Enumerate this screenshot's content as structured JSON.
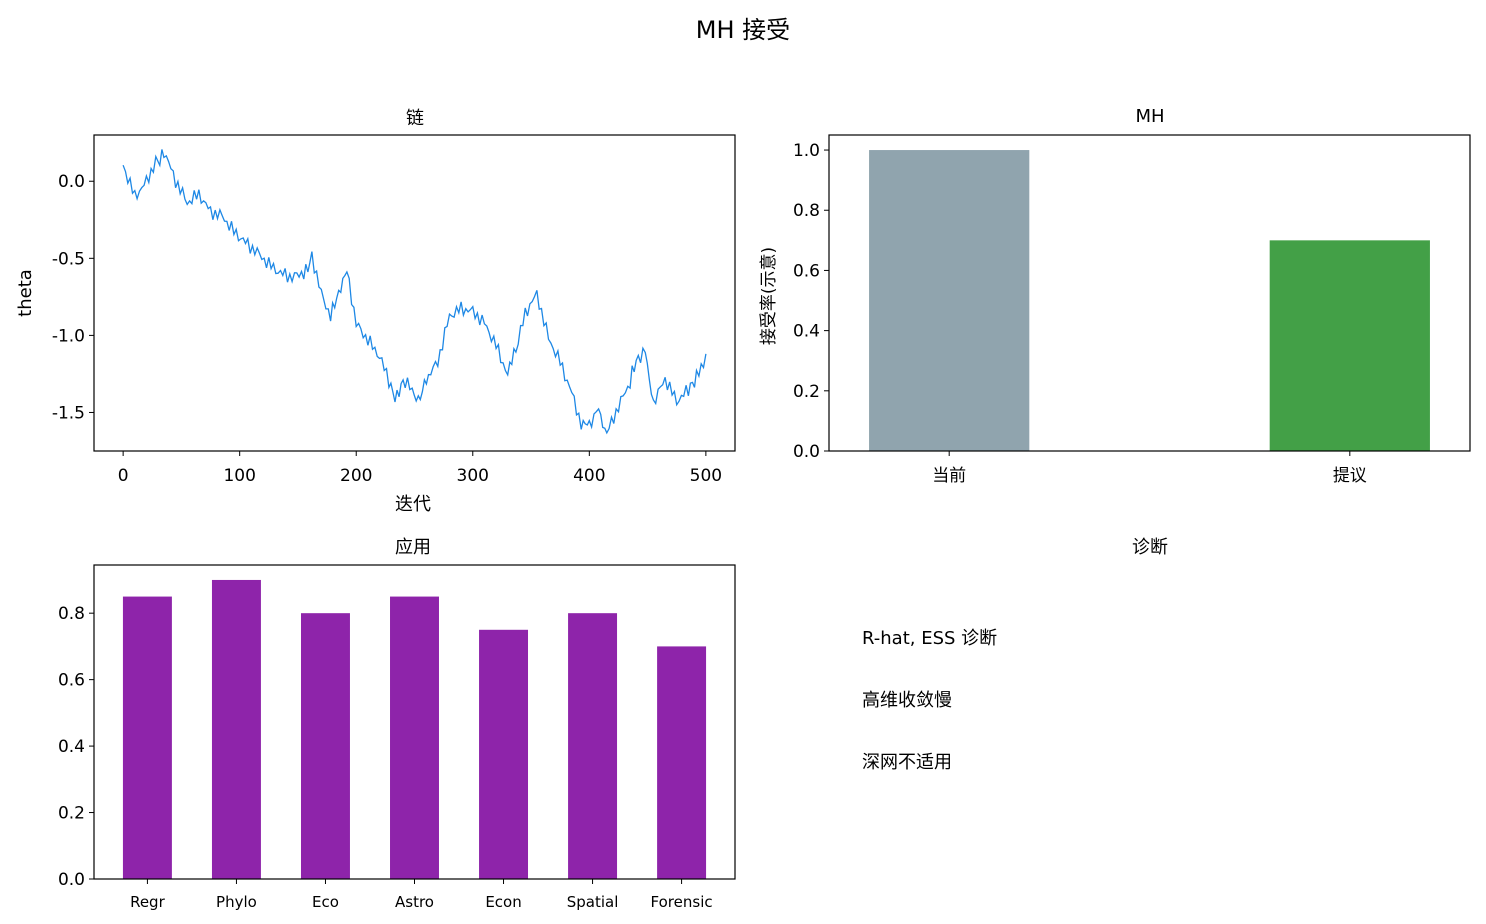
{
  "figure": {
    "suptitle": "MH 接受"
  },
  "chart_data": [
    {
      "type": "line",
      "title": "链",
      "xlabel": "迭代",
      "ylabel": "theta",
      "xlim": [
        -25,
        525
      ],
      "ylim": [
        -1.75,
        0.3
      ],
      "xticks": [
        0,
        100,
        200,
        300,
        400,
        500
      ],
      "xtick_labels": [
        "0",
        "100",
        "200",
        "300",
        "400",
        "500"
      ],
      "yticks": [
        0.0,
        -0.5,
        -1.0,
        -1.5
      ],
      "ytick_labels": [
        "0.0",
        "-0.5",
        "-1.0",
        "-1.5"
      ],
      "grid": false,
      "color": "#1e88e5",
      "series": [
        {
          "x": [
            0,
            10,
            20,
            28,
            35,
            45,
            55,
            65,
            75,
            85,
            95,
            105,
            115,
            125,
            135,
            145,
            155,
            162,
            170,
            178,
            185,
            192,
            200,
            210,
            220,
            228,
            235,
            242,
            248,
            255,
            262,
            270,
            280,
            290,
            300,
            310,
            320,
            330,
            337,
            345,
            355,
            365,
            375,
            385,
            393,
            400,
            408,
            415,
            425,
            435,
            442,
            448,
            455,
            465,
            475,
            485,
            492,
            500
          ],
          "y": [
            0.08,
            -0.12,
            -0.02,
            0.12,
            0.2,
            0.0,
            -0.15,
            -0.1,
            -0.22,
            -0.25,
            -0.35,
            -0.42,
            -0.48,
            -0.55,
            -0.6,
            -0.62,
            -0.58,
            -0.5,
            -0.75,
            -0.9,
            -0.7,
            -0.6,
            -0.95,
            -1.05,
            -1.15,
            -1.3,
            -1.4,
            -1.3,
            -1.35,
            -1.42,
            -1.25,
            -1.15,
            -0.85,
            -0.8,
            -0.82,
            -0.9,
            -1.05,
            -1.25,
            -1.1,
            -0.85,
            -0.72,
            -1.0,
            -1.15,
            -1.35,
            -1.55,
            -1.6,
            -1.5,
            -1.62,
            -1.45,
            -1.3,
            -1.15,
            -1.08,
            -1.45,
            -1.3,
            -1.45,
            -1.38,
            -1.25,
            -1.12
          ]
        }
      ]
    },
    {
      "type": "bar",
      "title": "MH",
      "xlabel": "",
      "ylabel": "接受率(示意)",
      "categories": [
        "当前",
        "提议"
      ],
      "values": [
        1.0,
        0.7
      ],
      "colors": [
        "#90a4ae",
        "#43a047"
      ],
      "ylim": [
        0,
        1.05
      ],
      "yticks": [
        0.0,
        0.2,
        0.4,
        0.6,
        0.8,
        1.0
      ],
      "ytick_labels": [
        "0.0",
        "0.2",
        "0.4",
        "0.6",
        "0.8",
        "1.0"
      ],
      "grid": false
    },
    {
      "type": "bar",
      "title": "应用",
      "xlabel": "",
      "ylabel": "",
      "categories": [
        "Regr",
        "Phylo",
        "Eco",
        "Astro",
        "Econ",
        "Spatial",
        "Forensic"
      ],
      "values": [
        0.85,
        0.9,
        0.8,
        0.85,
        0.75,
        0.8,
        0.7
      ],
      "color": "#8e24aa",
      "ylim": [
        0,
        0.945
      ],
      "yticks": [
        0.0,
        0.2,
        0.4,
        0.6,
        0.8
      ],
      "ytick_labels": [
        "0.0",
        "0.2",
        "0.4",
        "0.6",
        "0.8"
      ],
      "grid": false
    }
  ],
  "diagnostics": {
    "title": "诊断",
    "lines": [
      "R-hat, ESS 诊断",
      "高维收敛慢",
      "深网不适用"
    ]
  }
}
